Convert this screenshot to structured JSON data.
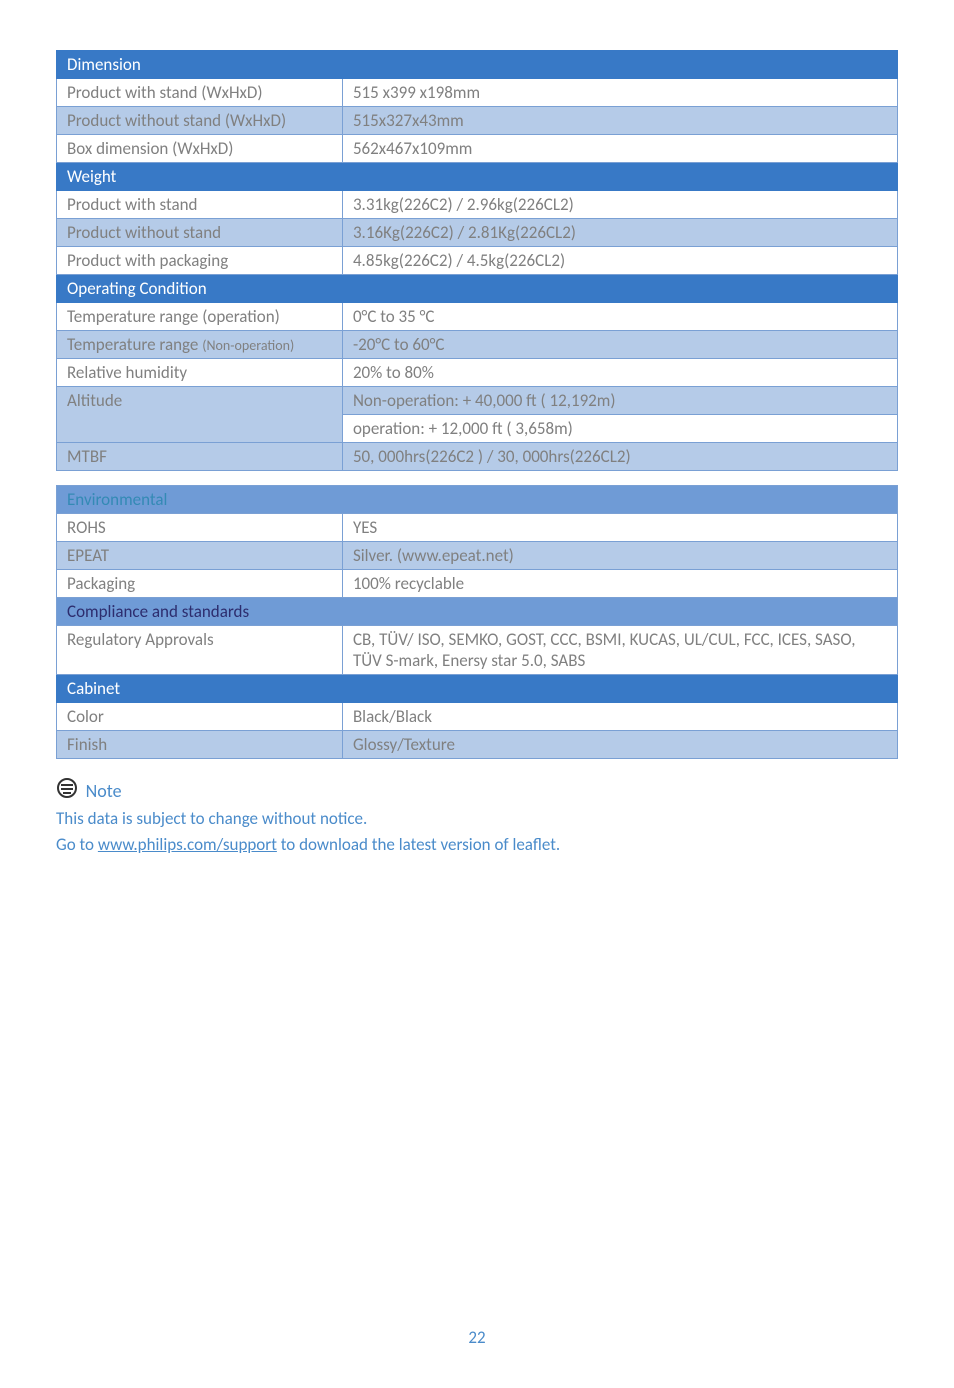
{
  "table1": {
    "sections": [
      {
        "header": "Dimension",
        "rows": [
          {
            "label": "Product with stand (WxHxD)",
            "value": "515 x399 x198mm",
            "alt": false
          },
          {
            "label": "Product without stand (WxHxD)",
            "value": "515x327x43mm",
            "alt": true
          },
          {
            "label": "Box dimension (WxHxD)",
            "value": "562x467x109mm",
            "alt": false
          }
        ]
      },
      {
        "header": "Weight",
        "rows": [
          {
            "label": "Product with stand",
            "value": "3.31kg(226C2) / 2.96kg(226CL2)",
            "alt": false
          },
          {
            "label": "Product without stand",
            "value": "3.16Kg(226C2) / 2.81Kg(226CL2)",
            "alt": true
          },
          {
            "label": "Product with packaging",
            "value": "4.85kg(226C2) / 4.5kg(226CL2)",
            "alt": false
          }
        ]
      },
      {
        "header": "Operating Condition",
        "rows": [
          {
            "label": "Temperature range (operation)",
            "value": "0°C to 35 °C",
            "alt": false
          },
          {
            "label_html": "Temperature range <span style='font-size:14px'>(Non-operation)</span>",
            "value": "-20°C to 60°C",
            "alt": true
          },
          {
            "label": "Relative humidity",
            "value": "20% to 80%",
            "alt": false
          }
        ]
      }
    ],
    "altitude": {
      "label": "Altitude",
      "v1": "Non-operation: + 40,000 ft ( 12,192m)",
      "v2": "operation: + 12,000 ft ( 3,658m)"
    },
    "mtbf": {
      "label": "MTBF",
      "value": "50, 000hrs(226C2 ) / 30, 000hrs(226CL2)"
    }
  },
  "table2": {
    "env_header": "Environmental",
    "env_rows": [
      {
        "label": "ROHS",
        "value": "YES",
        "alt": false
      },
      {
        "label": "EPEAT",
        "value": "Silver. (www.epeat.net)",
        "alt": true
      },
      {
        "label": "Packaging",
        "value": "100% recyclable",
        "alt": false
      }
    ],
    "compliance_header": "Compliance and standards",
    "compliance_rows": [
      {
        "label": "Regulatory Approvals",
        "value": "CB, TÜV/ ISO, SEMKO, GOST, CCC, BSMI, KUCAS, UL/CUL, FCC, ICES, SASO, TÜV S-mark, Enersy star 5.0, SABS",
        "alt": false
      }
    ],
    "cabinet_header": "Cabinet",
    "cabinet_rows": [
      {
        "label": "Color",
        "value": "Black/Black",
        "alt": false
      },
      {
        "label": "Finish",
        "value": "Glossy/Texture",
        "alt": true
      }
    ]
  },
  "note": {
    "title": "Note",
    "line1": "This data is subject to change without notice.",
    "line2_pre": "Go to ",
    "line2_link": "www.philips.com/support",
    "line2_post": " to download the latest version of leaflet."
  },
  "page": "22"
}
